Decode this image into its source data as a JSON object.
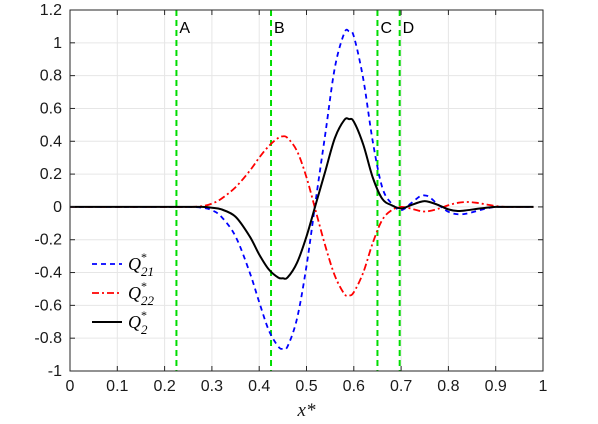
{
  "chart_data": {
    "type": "line",
    "title": "",
    "xlabel": "x*",
    "ylabel": "",
    "xlim": [
      0,
      1
    ],
    "ylim": [
      -1,
      1.2
    ],
    "xticks": [
      0,
      0.1,
      0.2,
      0.3,
      0.4,
      0.5,
      0.6,
      0.7,
      0.8,
      0.9,
      1
    ],
    "xtick_labels": [
      "0",
      "0.1",
      "0.2",
      "0.3",
      "0.4",
      "0.5",
      "0.6",
      "0.7",
      "0.8",
      "0.9",
      "1"
    ],
    "yticks": [
      -1,
      -0.8,
      -0.6,
      -0.4,
      -0.2,
      0,
      0.2,
      0.4,
      0.6,
      0.8,
      1,
      1.2
    ],
    "ytick_labels": [
      "-1",
      "-0.8",
      "-0.6",
      "-0.4",
      "-0.2",
      "0",
      "0.2",
      "0.4",
      "0.6",
      "0.8",
      "1",
      "1.2"
    ],
    "grid": true,
    "legend_position": "bottom-left",
    "series": [
      {
        "name": "Q*21",
        "color": "#0000ff",
        "dash": "dashed",
        "x": [
          0,
          0.05,
          0.1,
          0.15,
          0.2,
          0.25,
          0.28,
          0.3,
          0.32,
          0.35,
          0.38,
          0.4,
          0.42,
          0.44,
          0.45,
          0.46,
          0.48,
          0.5,
          0.52,
          0.54,
          0.56,
          0.58,
          0.59,
          0.6,
          0.62,
          0.64,
          0.66,
          0.68,
          0.7,
          0.72,
          0.74,
          0.75,
          0.76,
          0.78,
          0.8,
          0.82,
          0.84,
          0.86,
          0.88,
          0.9,
          0.92,
          0.94,
          0.96,
          0.98
        ],
        "y": [
          0,
          0,
          0,
          0,
          0,
          0,
          -0.005,
          -0.02,
          -0.06,
          -0.18,
          -0.4,
          -0.58,
          -0.75,
          -0.85,
          -0.865,
          -0.85,
          -0.68,
          -0.36,
          0.05,
          0.45,
          0.85,
          1.06,
          1.07,
          1.04,
          0.78,
          0.4,
          0.12,
          0.02,
          -0.02,
          0.02,
          0.065,
          0.07,
          0.06,
          0.01,
          -0.03,
          -0.045,
          -0.04,
          -0.025,
          -0.01,
          0,
          0,
          0,
          0,
          0
        ]
      },
      {
        "name": "Q*22",
        "color": "#ff0000",
        "dash": "dashdot",
        "x": [
          0,
          0.05,
          0.1,
          0.15,
          0.2,
          0.25,
          0.28,
          0.3,
          0.32,
          0.35,
          0.38,
          0.4,
          0.42,
          0.44,
          0.45,
          0.46,
          0.48,
          0.5,
          0.52,
          0.54,
          0.56,
          0.58,
          0.59,
          0.6,
          0.62,
          0.64,
          0.66,
          0.68,
          0.7,
          0.72,
          0.74,
          0.75,
          0.76,
          0.78,
          0.8,
          0.82,
          0.84,
          0.86,
          0.88,
          0.9,
          0.92,
          0.94,
          0.96,
          0.98
        ],
        "y": [
          0,
          0,
          0,
          0,
          0,
          0,
          0.005,
          0.02,
          0.05,
          0.12,
          0.22,
          0.3,
          0.37,
          0.42,
          0.43,
          0.42,
          0.34,
          0.18,
          -0.03,
          -0.24,
          -0.42,
          -0.53,
          -0.54,
          -0.52,
          -0.4,
          -0.22,
          -0.08,
          -0.02,
          0.0,
          -0.01,
          -0.025,
          -0.028,
          -0.025,
          -0.01,
          0.01,
          0.025,
          0.03,
          0.025,
          0.015,
          0.005,
          0,
          0,
          0,
          0
        ]
      },
      {
        "name": "Q*2",
        "color": "#000000",
        "dash": "solid",
        "x": [
          0,
          0.05,
          0.1,
          0.15,
          0.2,
          0.25,
          0.28,
          0.3,
          0.32,
          0.35,
          0.38,
          0.4,
          0.42,
          0.44,
          0.45,
          0.46,
          0.48,
          0.5,
          0.52,
          0.54,
          0.56,
          0.58,
          0.59,
          0.6,
          0.62,
          0.64,
          0.66,
          0.68,
          0.7,
          0.72,
          0.74,
          0.75,
          0.76,
          0.78,
          0.8,
          0.82,
          0.84,
          0.86,
          0.88,
          0.9,
          0.92,
          0.94,
          0.96,
          0.98
        ],
        "y": [
          0,
          0,
          0,
          0,
          0,
          0,
          0,
          -0.005,
          -0.015,
          -0.06,
          -0.18,
          -0.29,
          -0.38,
          -0.43,
          -0.435,
          -0.43,
          -0.34,
          -0.18,
          0.02,
          0.22,
          0.42,
          0.53,
          0.535,
          0.52,
          0.38,
          0.18,
          0.05,
          0.01,
          -0.01,
          0.01,
          0.03,
          0.035,
          0.03,
          0.01,
          -0.015,
          -0.025,
          -0.02,
          -0.012,
          -0.005,
          0,
          0,
          0,
          0,
          0
        ]
      }
    ],
    "vlines": {
      "color": "#00dd00",
      "items": [
        {
          "x": 0.225,
          "label": "A"
        },
        {
          "x": 0.425,
          "label": "B"
        },
        {
          "x": 0.65,
          "label": "C"
        },
        {
          "x": 0.697,
          "label": "D"
        }
      ]
    },
    "legend": [
      {
        "base": "Q",
        "sup": "*",
        "sub": "21",
        "series": 0
      },
      {
        "base": "Q",
        "sup": "*",
        "sub": "22",
        "series": 1
      },
      {
        "base": "Q",
        "sup": "*",
        "sub": "2",
        "series": 2
      }
    ]
  }
}
